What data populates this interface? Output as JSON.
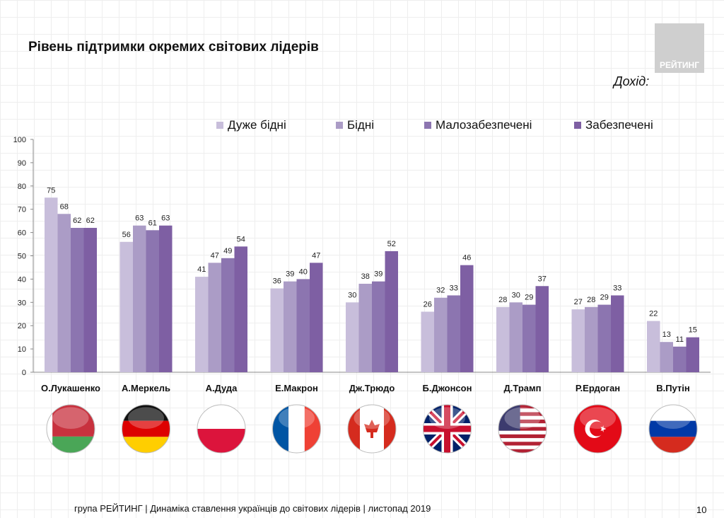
{
  "title": "Рівень підтримки окремих світових лідерів",
  "logo_text": "РЕЙТИНГ",
  "legend_title": "Дохід:",
  "footer": "група РЕЙТИНГ | Динаміка ставлення українців до світових лідерів  | листопад 2019",
  "page_number": "10",
  "flags": [
    "belarus-flag",
    "germany-flag",
    "poland-flag",
    "france-flag",
    "canada-flag",
    "uk-flag",
    "usa-flag",
    "turkey-flag",
    "russia-flag"
  ],
  "chart_data": {
    "type": "bar",
    "categories": [
      "О.Лукашенко",
      "А.Меркель",
      "А.Дуда",
      "Е.Макрон",
      "Дж.Трюдо",
      "Б.Джонсон",
      "Д.Трамп",
      "Р.Ердоган",
      "В.Путін"
    ],
    "series": [
      {
        "name": "Дуже бідні",
        "color": "#c8bedb",
        "values": [
          75,
          56,
          41,
          36,
          30,
          26,
          28,
          27,
          22
        ]
      },
      {
        "name": "Бідні",
        "color": "#ab9cc6",
        "values": [
          68,
          63,
          47,
          39,
          38,
          32,
          30,
          28,
          13
        ]
      },
      {
        "name": "Малозабезпечені",
        "color": "#8c75b0",
        "values": [
          62,
          61,
          49,
          40,
          39,
          33,
          29,
          29,
          11
        ]
      },
      {
        "name": "Забезпечені",
        "color": "#7e5fa3",
        "values": [
          62,
          63,
          54,
          47,
          52,
          46,
          37,
          33,
          15
        ]
      }
    ],
    "yticks": [
      0,
      10,
      20,
      30,
      40,
      50,
      60,
      70,
      80,
      90,
      100
    ],
    "ylim": [
      0,
      100
    ],
    "legend_position": "top"
  }
}
